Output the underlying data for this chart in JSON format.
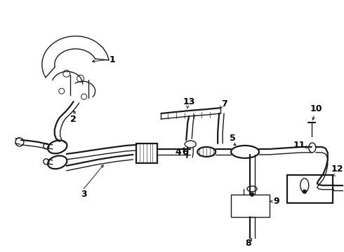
{
  "bg_color": "#ffffff",
  "line_color": "#1a1a1a",
  "label_color": "#000000",
  "figsize": [
    4.9,
    3.6
  ],
  "dpi": 100,
  "lw_main": 1.0,
  "lw_thick": 1.6,
  "lw_thin": 0.6,
  "label_fs": 9
}
